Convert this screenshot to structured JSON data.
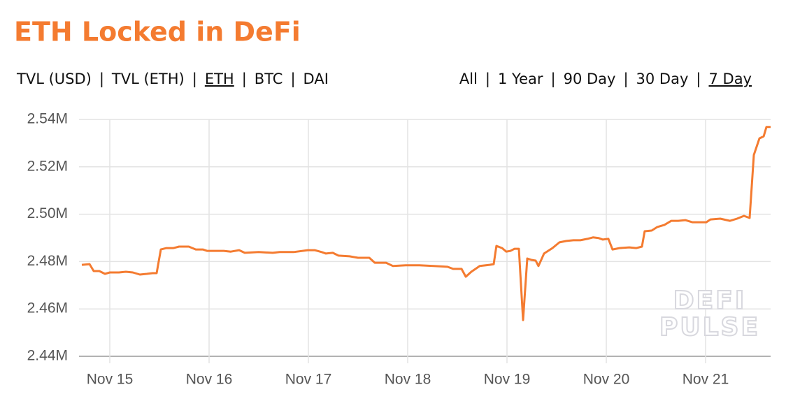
{
  "title": "ETH Locked in DeFi",
  "separator": "|",
  "metrics": {
    "options": [
      "TVL (USD)",
      "TVL (ETH)",
      "ETH",
      "BTC",
      "DAI"
    ],
    "selected": 2
  },
  "ranges": {
    "options": [
      "All",
      "1 Year",
      "90 Day",
      "30 Day",
      "7 Day"
    ],
    "selected": 4
  },
  "chart_data": {
    "type": "line",
    "color": "#f47b30",
    "grid": true,
    "watermark": [
      "DEFI",
      "PULSE"
    ],
    "xlim": [
      14.69,
      21.655
    ],
    "xticks": [
      {
        "value": 15,
        "label": "Nov 15"
      },
      {
        "value": 16,
        "label": "Nov 16"
      },
      {
        "value": 17,
        "label": "Nov 17"
      },
      {
        "value": 18,
        "label": "Nov 18"
      },
      {
        "value": 19,
        "label": "Nov 19"
      },
      {
        "value": 20,
        "label": "Nov 20"
      },
      {
        "value": 21,
        "label": "Nov 21"
      }
    ],
    "ylim": [
      2440000,
      2540000
    ],
    "yticks": [
      {
        "value": 2440000,
        "label": "2.44M"
      },
      {
        "value": 2460000,
        "label": "2.46M"
      },
      {
        "value": 2480000,
        "label": "2.48M"
      },
      {
        "value": 2500000,
        "label": "2.50M"
      },
      {
        "value": 2520000,
        "label": "2.52M"
      },
      {
        "value": 2540000,
        "label": "2.54M"
      }
    ],
    "x": [
      14.718,
      14.796,
      14.838,
      14.894,
      14.951,
      15.0,
      15.092,
      15.162,
      15.232,
      15.303,
      15.373,
      15.43,
      15.472,
      15.514,
      15.57,
      15.641,
      15.697,
      15.796,
      15.866,
      15.937,
      15.979,
      16.148,
      16.218,
      16.303,
      16.359,
      16.5,
      16.641,
      16.711,
      16.852,
      16.993,
      17.063,
      17.134,
      17.176,
      17.246,
      17.303,
      17.415,
      17.5,
      17.613,
      17.669,
      17.782,
      17.852,
      17.979,
      18.12,
      18.261,
      18.401,
      18.458,
      18.542,
      18.585,
      18.641,
      18.725,
      18.824,
      18.866,
      18.894,
      18.951,
      18.993,
      19.035,
      19.077,
      19.12,
      19.162,
      19.204,
      19.246,
      19.289,
      19.317,
      19.373,
      19.458,
      19.528,
      19.599,
      19.669,
      19.739,
      19.81,
      19.866,
      19.923,
      19.965,
      20.021,
      20.063,
      20.134,
      20.232,
      20.303,
      20.359,
      20.387,
      20.458,
      20.514,
      20.585,
      20.655,
      20.725,
      20.796,
      20.866,
      21.007,
      21.049,
      21.148,
      21.246,
      21.317,
      21.387,
      21.444,
      21.486,
      21.542,
      21.585,
      21.613,
      21.655
    ],
    "series": [
      {
        "name": "ETH",
        "color": "#f47b30",
        "values": [
          2478600,
          2478900,
          2476000,
          2476000,
          2474800,
          2475400,
          2475400,
          2475700,
          2475400,
          2474500,
          2474800,
          2475100,
          2475100,
          2485100,
          2485700,
          2485700,
          2486300,
          2486300,
          2485100,
          2485100,
          2484500,
          2484500,
          2484200,
          2484800,
          2483700,
          2484000,
          2483700,
          2484000,
          2484000,
          2484800,
          2484800,
          2484000,
          2483400,
          2483700,
          2482500,
          2482200,
          2481600,
          2481600,
          2479500,
          2479500,
          2478100,
          2478400,
          2478400,
          2478100,
          2477800,
          2476900,
          2476900,
          2473600,
          2475700,
          2478100,
          2478600,
          2478900,
          2486600,
          2485700,
          2484200,
          2484500,
          2485400,
          2485400,
          2455300,
          2481300,
          2480700,
          2480400,
          2478100,
          2483400,
          2485700,
          2488100,
          2488700,
          2489000,
          2489000,
          2489600,
          2490200,
          2489900,
          2489300,
          2489600,
          2485100,
          2485700,
          2486000,
          2485700,
          2486300,
          2492800,
          2493100,
          2494600,
          2495500,
          2497200,
          2497200,
          2497500,
          2496600,
          2496600,
          2497800,
          2498100,
          2497200,
          2498100,
          2499300,
          2498400,
          2525000,
          2532000,
          2532900,
          2536800,
          2536800
        ]
      }
    ]
  }
}
